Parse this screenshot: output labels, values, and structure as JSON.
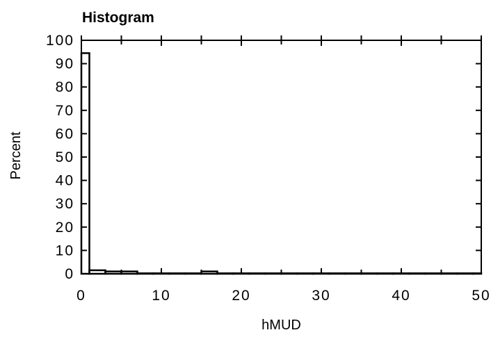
{
  "chart_data": {
    "type": "bar",
    "title": "Histogram",
    "xlabel": "hMUD",
    "ylabel": "Percent",
    "xlim": [
      0,
      50
    ],
    "ylim": [
      0,
      100
    ],
    "grid": false,
    "x_ticks": [
      "0",
      "10",
      "20",
      "30",
      "40",
      "50"
    ],
    "y_ticks": [
      "0",
      "10",
      "20",
      "30",
      "40",
      "50",
      "60",
      "70",
      "80",
      "90",
      "100"
    ],
    "bin_width": 2,
    "bins": [
      {
        "x0": 0,
        "x1": 1,
        "value": 94.5
      },
      {
        "x0": 1,
        "x1": 3,
        "value": 1.5
      },
      {
        "x0": 3,
        "x1": 5,
        "value": 1.0
      },
      {
        "x0": 5,
        "x1": 7,
        "value": 1.0
      },
      {
        "x0": 7,
        "x1": 9,
        "value": 0.2
      },
      {
        "x0": 9,
        "x1": 11,
        "value": 0.2
      },
      {
        "x0": 11,
        "x1": 13,
        "value": 0.2
      },
      {
        "x0": 13,
        "x1": 15,
        "value": 0.2
      },
      {
        "x0": 15,
        "x1": 17,
        "value": 1.0
      },
      {
        "x0": 17,
        "x1": 19,
        "value": 0.2
      },
      {
        "x0": 19,
        "x1": 21,
        "value": 0.2
      },
      {
        "x0": 21,
        "x1": 23,
        "value": 0.2
      },
      {
        "x0": 23,
        "x1": 25,
        "value": 0.2
      },
      {
        "x0": 25,
        "x1": 27,
        "value": 0.2
      },
      {
        "x0": 27,
        "x1": 29,
        "value": 0.2
      },
      {
        "x0": 29,
        "x1": 31,
        "value": 0.2
      },
      {
        "x0": 31,
        "x1": 33,
        "value": 0.2
      },
      {
        "x0": 33,
        "x1": 35,
        "value": 0.2
      },
      {
        "x0": 35,
        "x1": 37,
        "value": 0.2
      },
      {
        "x0": 37,
        "x1": 39,
        "value": 0.2
      },
      {
        "x0": 39,
        "x1": 41,
        "value": 0.2
      },
      {
        "x0": 41,
        "x1": 43,
        "value": 0.2
      },
      {
        "x0": 43,
        "x1": 45,
        "value": 0.2
      },
      {
        "x0": 45,
        "x1": 47,
        "value": 0.2
      },
      {
        "x0": 47,
        "x1": 49,
        "value": 0.2
      },
      {
        "x0": 49,
        "x1": 50,
        "value": 0.2
      }
    ],
    "colors": {
      "bar_fill": "#ffffff",
      "bar_stroke": "#000000",
      "axis": "#000000"
    }
  }
}
